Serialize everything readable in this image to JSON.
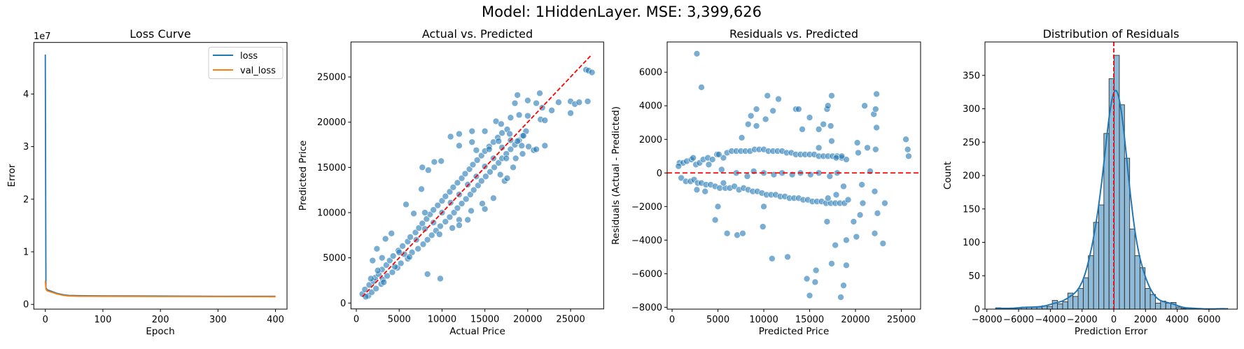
{
  "suptitle": "Model: 1HiddenLayer. MSE: 3,399,626",
  "colors": {
    "blue": "#1f77b4",
    "orange": "#ff7f0e",
    "reference": "#ff0000"
  },
  "chart_data": [
    {
      "type": "line",
      "title": "Loss Curve",
      "xlabel": "Epoch",
      "ylabel": "Error",
      "y_offset_text": "1e7",
      "xlim": [
        -20,
        420
      ],
      "ylim": [
        -900000,
        49800000
      ],
      "xticks": [
        0,
        100,
        200,
        300,
        400
      ],
      "yticks": [
        0,
        10000000,
        20000000,
        30000000,
        40000000
      ],
      "ytick_labels": [
        "0",
        "1",
        "2",
        "3",
        "4"
      ],
      "legend": "top-right",
      "grid": false,
      "series": [
        {
          "name": "loss",
          "color": "#1f77b4",
          "points": [
            [
              0,
              47500000
            ],
            [
              1,
              3200000
            ],
            [
              3,
              2800000
            ],
            [
              10,
              2500000
            ],
            [
              20,
              2100000
            ],
            [
              30,
              1850000
            ],
            [
              40,
              1700000
            ],
            [
              60,
              1650000
            ],
            [
              100,
              1630000
            ],
            [
              200,
              1580000
            ],
            [
              300,
              1550000
            ],
            [
              400,
              1530000
            ]
          ]
        },
        {
          "name": "val_loss",
          "color": "#ff7f0e",
          "points": [
            [
              0,
              4500000
            ],
            [
              1,
              2900000
            ],
            [
              3,
              2600000
            ],
            [
              10,
              2350000
            ],
            [
              20,
              2000000
            ],
            [
              30,
              1750000
            ],
            [
              40,
              1600000
            ],
            [
              60,
              1550000
            ],
            [
              100,
              1530000
            ],
            [
              200,
              1500000
            ],
            [
              300,
              1480000
            ],
            [
              400,
              1450000
            ]
          ]
        }
      ]
    },
    {
      "type": "scatter",
      "title": "Actual vs. Predicted",
      "xlabel": "Actual Price",
      "ylabel": "Predicted Price",
      "xlim": [
        -630,
        28860
      ],
      "ylim": [
        -650,
        28870
      ],
      "xticks": [
        0,
        5000,
        10000,
        15000,
        20000,
        25000
      ],
      "yticks": [
        0,
        5000,
        10000,
        15000,
        20000,
        25000
      ],
      "reference_line": "y = x",
      "grid": false,
      "points_actual_predicted": [
        [
          1400,
          800
        ],
        [
          700,
          1000
        ],
        [
          1800,
          1200
        ],
        [
          1000,
          1500
        ],
        [
          2300,
          1600
        ],
        [
          1500,
          2000
        ],
        [
          2900,
          2100
        ],
        [
          2000,
          2400
        ],
        [
          3100,
          2600
        ],
        [
          2200,
          2800
        ],
        [
          3600,
          3000
        ],
        [
          2600,
          3200
        ],
        [
          4200,
          3400
        ],
        [
          3000,
          3700
        ],
        [
          4800,
          3900
        ],
        [
          3500,
          4200
        ],
        [
          5200,
          4400
        ],
        [
          3900,
          4700
        ],
        [
          6000,
          4900
        ],
        [
          4300,
          5200
        ],
        [
          2400,
          6000
        ],
        [
          1900,
          4700
        ],
        [
          3400,
          7100
        ],
        [
          4100,
          7700
        ],
        [
          5600,
          5400
        ],
        [
          6500,
          5600
        ],
        [
          4900,
          5800
        ],
        [
          7200,
          6000
        ],
        [
          5400,
          6300
        ],
        [
          7800,
          6500
        ],
        [
          6000,
          6800
        ],
        [
          8300,
          7000
        ],
        [
          6300,
          7300
        ],
        [
          8800,
          7500
        ],
        [
          6900,
          7800
        ],
        [
          9300,
          8000
        ],
        [
          7300,
          8300
        ],
        [
          9800,
          8500
        ],
        [
          7700,
          8800
        ],
        [
          10400,
          9000
        ],
        [
          8200,
          9300
        ],
        [
          10900,
          9500
        ],
        [
          8600,
          9800
        ],
        [
          11400,
          10000
        ],
        [
          9000,
          10300
        ],
        [
          11800,
          10500
        ],
        [
          9500,
          10800
        ],
        [
          12300,
          11000
        ],
        [
          10000,
          11300
        ],
        [
          12800,
          11500
        ],
        [
          10400,
          11800
        ],
        [
          13300,
          12000
        ],
        [
          10900,
          12300
        ],
        [
          13700,
          12500
        ],
        [
          11300,
          12800
        ],
        [
          14200,
          13000
        ],
        [
          11800,
          13300
        ],
        [
          14600,
          13500
        ],
        [
          12300,
          13800
        ],
        [
          15100,
          14000
        ],
        [
          12700,
          14300
        ],
        [
          15600,
          14500
        ],
        [
          13200,
          14800
        ],
        [
          16100,
          15000
        ],
        [
          13600,
          15300
        ],
        [
          16600,
          15500
        ],
        [
          14100,
          15800
        ],
        [
          17000,
          16000
        ],
        [
          14600,
          16300
        ],
        [
          17500,
          16500
        ],
        [
          15000,
          16800
        ],
        [
          18000,
          17000
        ],
        [
          15500,
          17300
        ],
        [
          18500,
          17500
        ],
        [
          16000,
          17800
        ],
        [
          19000,
          18000
        ],
        [
          16500,
          18300
        ],
        [
          19400,
          18500
        ],
        [
          17000,
          18800
        ],
        [
          19800,
          19000
        ],
        [
          17600,
          19200
        ],
        [
          9700,
          7600
        ],
        [
          8000,
          10000
        ],
        [
          12000,
          9200
        ],
        [
          6700,
          9900
        ],
        [
          5800,
          10900
        ],
        [
          7600,
          12600
        ],
        [
          7700,
          15000
        ],
        [
          8400,
          14700
        ],
        [
          9100,
          15600
        ],
        [
          9900,
          15700
        ],
        [
          11000,
          18400
        ],
        [
          12000,
          18700
        ],
        [
          13500,
          19000
        ],
        [
          15000,
          19000
        ],
        [
          15000,
          10400
        ],
        [
          14700,
          11000
        ],
        [
          16000,
          11600
        ],
        [
          11200,
          8300
        ],
        [
          12000,
          8600
        ],
        [
          13000,
          9200
        ],
        [
          13400,
          10200
        ],
        [
          17300,
          13500
        ],
        [
          17600,
          13800
        ],
        [
          19400,
          16500
        ],
        [
          20700,
          16900
        ],
        [
          21000,
          17000
        ],
        [
          22000,
          17400
        ],
        [
          18500,
          22100
        ],
        [
          18800,
          23000
        ],
        [
          20000,
          22400
        ],
        [
          21000,
          22100
        ],
        [
          21400,
          23200
        ],
        [
          21700,
          21600
        ],
        [
          22800,
          21300
        ],
        [
          23600,
          22200
        ],
        [
          21500,
          20300
        ],
        [
          22000,
          20200
        ],
        [
          25000,
          21000
        ],
        [
          25000,
          22300
        ],
        [
          25500,
          22000
        ],
        [
          26000,
          22200
        ],
        [
          27000,
          22300
        ],
        [
          26800,
          25800
        ],
        [
          27100,
          25700
        ],
        [
          27500,
          25500
        ],
        [
          19000,
          20800
        ],
        [
          18000,
          20500
        ],
        [
          20000,
          20700
        ],
        [
          9800,
          2700
        ],
        [
          8300,
          3200
        ],
        [
          20100,
          17300
        ],
        [
          19500,
          18500
        ],
        [
          16300,
          20100
        ],
        [
          16900,
          19800
        ],
        [
          12000,
          17400
        ],
        [
          17500,
          16000
        ],
        [
          18300,
          15000
        ],
        [
          18600,
          16000
        ],
        [
          16800,
          14200
        ],
        [
          14000,
          16900
        ],
        [
          13500,
          17800
        ],
        [
          15500,
          17000
        ],
        [
          16600,
          17900
        ],
        [
          17900,
          18700
        ],
        [
          18800,
          17900
        ],
        [
          19300,
          17400
        ],
        [
          3000,
          5000
        ],
        [
          3200,
          2300
        ],
        [
          1700,
          2700
        ],
        [
          1100,
          700
        ],
        [
          2500,
          3600
        ],
        [
          4500,
          4000
        ],
        [
          5000,
          5600
        ],
        [
          6200,
          5100
        ],
        [
          7000,
          7000
        ],
        [
          8000,
          8200
        ],
        [
          9000,
          8900
        ],
        [
          10000,
          10000
        ],
        [
          11000,
          11100
        ],
        [
          12000,
          12000
        ],
        [
          13000,
          13100
        ],
        [
          14000,
          14000
        ],
        [
          15000,
          15100
        ],
        [
          16000,
          16000
        ],
        [
          17000,
          17200
        ],
        [
          18000,
          18000
        ]
      ]
    },
    {
      "type": "scatter",
      "title": "Residuals vs. Predicted",
      "xlabel": "Predicted Price",
      "ylabel": "Residuals (Actual - Predicted)",
      "derived_from": "Actual vs. Predicted points: x = predicted, y = actual - predicted",
      "xlim": [
        -540,
        27100
      ],
      "ylim": [
        -8110,
        7800
      ],
      "xticks": [
        0,
        5000,
        10000,
        15000,
        20000,
        25000
      ],
      "yticks": [
        -8000,
        -6000,
        -4000,
        -2000,
        0,
        2000,
        4000,
        6000
      ],
      "reference_line": "y = 0",
      "grid": false
    },
    {
      "type": "bar",
      "subtype": "histogram",
      "title": "Distribution of Residuals",
      "xlabel": "Prediction Error",
      "ylabel": "Count",
      "xlim": [
        -8120,
        7780
      ],
      "ylim": [
        0,
        400
      ],
      "xticks": [
        -8000,
        -6000,
        -4000,
        -2000,
        0,
        2000,
        4000,
        6000
      ],
      "yticks": [
        0,
        50,
        100,
        150,
        200,
        250,
        300,
        350
      ],
      "bin_start": -7450,
      "bin_width": 325,
      "counts": [
        2,
        1,
        1,
        1,
        2,
        3,
        3,
        3,
        3,
        5,
        4,
        13,
        8,
        11,
        24,
        19,
        31,
        47,
        80,
        130,
        156,
        263,
        345,
        380,
        306,
        226,
        120,
        80,
        62,
        31,
        22,
        9,
        12,
        9,
        10,
        3,
        1,
        2,
        1,
        1,
        0,
        0,
        0,
        1,
        1
      ],
      "kde": true,
      "reference_line": "x = 0",
      "grid": false
    }
  ]
}
